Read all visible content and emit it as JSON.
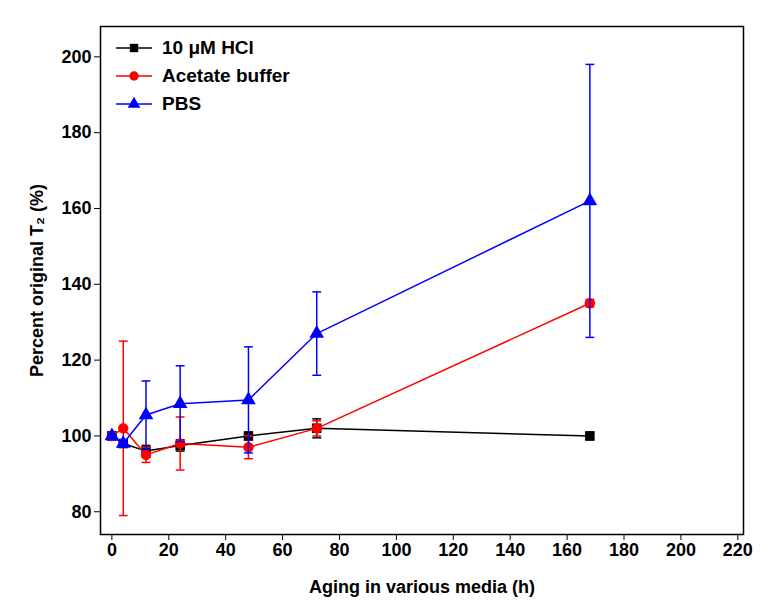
{
  "chart_data": {
    "type": "line",
    "x_label": "Aging in various media (h)",
    "y_label": "Percent original T₂ (%)",
    "x": [
      0,
      4,
      12,
      24,
      48,
      72,
      168
    ],
    "series": [
      {
        "name": "10 μM HCl",
        "color": "#000000",
        "marker": "square",
        "values": [
          100,
          98,
          96,
          97.5,
          100,
          102,
          100
        ],
        "errors": [
          1,
          1,
          1.5,
          1.5,
          1,
          2.5,
          1
        ]
      },
      {
        "name": "Acetate buffer",
        "color": "#ff0000",
        "marker": "circle",
        "values": [
          100,
          102,
          95,
          98,
          97,
          102,
          135
        ],
        "errors": [
          0.5,
          23,
          2,
          7,
          3,
          2,
          1
        ]
      },
      {
        "name": "PBS",
        "color": "#0000ff",
        "marker": "triangle",
        "values": [
          100,
          98,
          105.5,
          108.5,
          109.5,
          127,
          162
        ],
        "errors": [
          0.5,
          1,
          9,
          10,
          14,
          11,
          36
        ]
      }
    ],
    "xlim": [
      -4,
      222
    ],
    "xticks": [
      0,
      20,
      40,
      60,
      80,
      100,
      120,
      140,
      160,
      180,
      200,
      220
    ],
    "ylim": [
      74,
      208
    ],
    "yticks": [
      80,
      100,
      120,
      140,
      160,
      180,
      200
    ],
    "legend": "upper left",
    "grid": false
  }
}
